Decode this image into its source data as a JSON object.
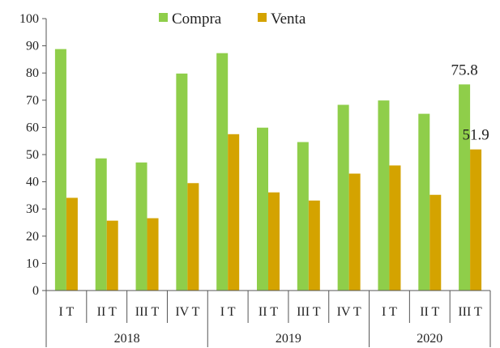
{
  "chart_data": {
    "type": "bar",
    "title": "",
    "xlabel": "",
    "ylabel": "",
    "ylim": [
      0,
      100
    ],
    "yticks": [
      0,
      10,
      20,
      30,
      40,
      50,
      60,
      70,
      80,
      90,
      100
    ],
    "grid": false,
    "legend_position": "top-center",
    "categories": [
      "I T",
      "II T",
      "III T",
      "IV T",
      "I T",
      "II T",
      "III T",
      "IV T",
      "I T",
      "II T",
      "III T"
    ],
    "groups": [
      {
        "label": "2018",
        "count": 4
      },
      {
        "label": "2019",
        "count": 4
      },
      {
        "label": "2020",
        "count": 3
      }
    ],
    "series": [
      {
        "name": "Compra",
        "color": "#8fce4a",
        "values": [
          88.8,
          48.6,
          47.1,
          79.8,
          87.3,
          59.9,
          54.6,
          68.3,
          69.9,
          65.0,
          75.8
        ]
      },
      {
        "name": "Venta",
        "color": "#d4a300",
        "values": [
          34.1,
          25.7,
          26.6,
          39.5,
          57.5,
          36.1,
          33.1,
          43.0,
          46.0,
          35.2,
          51.9
        ]
      }
    ],
    "annotations": [
      {
        "series": 0,
        "index": 10,
        "text": "75.8"
      },
      {
        "series": 1,
        "index": 10,
        "text": "51.9"
      }
    ]
  }
}
